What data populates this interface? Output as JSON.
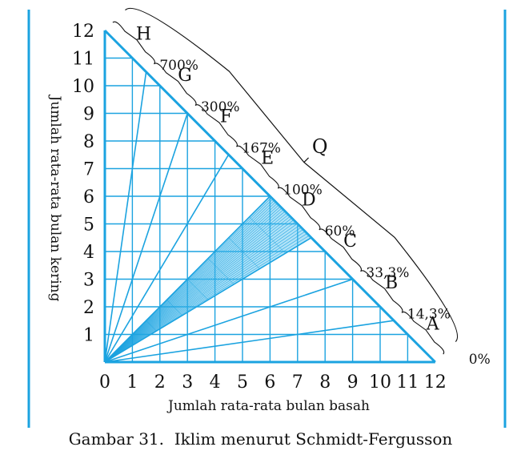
{
  "figure": {
    "x_axis_label": "Jumlah rata-rata bulan basah",
    "y_axis_label": "Jumlah rata-rata bulan kering",
    "caption": "Gambar 31.  Iklim menurut Schmidt-Fergusson",
    "colors": {
      "line": "#1ba3e0",
      "fill": "#55c2f0",
      "frame": "#1ba3e0",
      "ink": "#111111"
    }
  },
  "chart_data": {
    "type": "diagram",
    "xlabel": "Jumlah rata-rata bulan basah",
    "ylabel": "Jumlah rata-rata bulan kering",
    "xlim": [
      0,
      12
    ],
    "ylim": [
      0,
      12
    ],
    "x_ticks": [
      "0",
      "1",
      "2",
      "3",
      "4",
      "5",
      "6",
      "7",
      "8",
      "9",
      "10",
      "11",
      "12"
    ],
    "y_ticks": [
      "1",
      "2",
      "3",
      "4",
      "5",
      "6",
      "7",
      "8",
      "9",
      "10",
      "11",
      "12"
    ],
    "boundary_ratios": [
      {
        "label": "0%",
        "q": 0
      },
      {
        "label": "14,3%",
        "q": 0.143
      },
      {
        "label": "33,3%",
        "q": 0.333
      },
      {
        "label": "60%",
        "q": 0.6
      },
      {
        "label": "100%",
        "q": 1.0
      },
      {
        "label": "167%",
        "q": 1.67
      },
      {
        "label": "300%",
        "q": 3.0
      },
      {
        "label": "700%",
        "q": 7.0
      }
    ],
    "climate_classes": [
      "A",
      "B",
      "C",
      "D",
      "E",
      "F",
      "G",
      "H"
    ],
    "highlighted_class": "D",
    "q_label": "Q"
  }
}
